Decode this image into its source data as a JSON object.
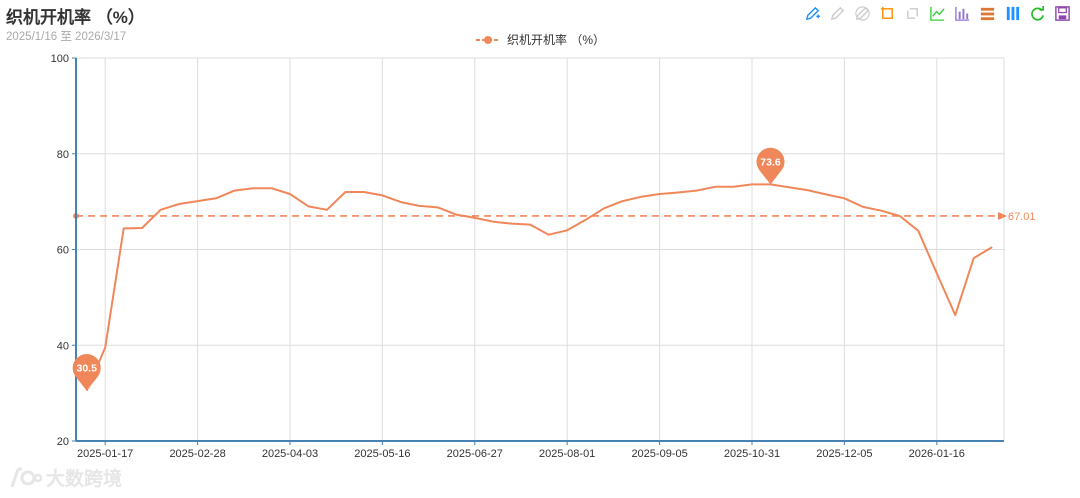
{
  "header": {
    "title": "织机开机率 （%）",
    "subtitle": "2025/1/16 至 2026/3/17"
  },
  "toolbox": [
    {
      "name": "mark-pen-icon",
      "color": "#1e90ff"
    },
    {
      "name": "mark-undo-icon",
      "color": "#cccccc"
    },
    {
      "name": "mark-clear-icon",
      "color": "#cccccc"
    },
    {
      "name": "data-zoom-icon",
      "color": "#ff8c00"
    },
    {
      "name": "data-zoom-reset-icon",
      "color": "#cccccc"
    },
    {
      "name": "line-chart-icon",
      "color": "#32cd32"
    },
    {
      "name": "bar-chart-icon",
      "color": "#9370db"
    },
    {
      "name": "stack-icon",
      "color": "#dc7633"
    },
    {
      "name": "tiled-icon",
      "color": "#1e90ff"
    },
    {
      "name": "restore-icon",
      "color": "#22bb22"
    },
    {
      "name": "save-image-icon",
      "color": "#8e44ad"
    }
  ],
  "watermark": {
    "text": "大数跨境"
  },
  "chart_data": {
    "type": "line",
    "title": "织机开机率 （%）",
    "subtitle": "2025/1/16 至 2026/3/17",
    "series": [
      {
        "name": "织机开机率 （%）",
        "color": "#f0875a",
        "values": [
          30.5,
          39.5,
          64.4,
          64.5,
          68.3,
          69.5,
          70.1,
          70.7,
          72.3,
          72.8,
          72.8,
          71.6,
          69.0,
          68.3,
          72.0,
          72.0,
          71.3,
          69.9,
          69.1,
          68.8,
          67.3,
          66.6,
          65.8,
          65.4,
          65.2,
          63.1,
          64.0,
          66.2,
          68.6,
          70.1,
          71.0,
          71.6,
          71.9,
          72.3,
          73.1,
          73.1,
          73.6,
          73.6,
          73.0,
          72.4,
          71.5,
          70.7,
          68.9,
          68.1,
          67.0,
          63.9,
          55.0,
          46.3,
          58.2,
          60.5
        ]
      }
    ],
    "x_tick_labels": [
      "2025-01-17",
      "2025-02-28",
      "2025-04-03",
      "2025-05-16",
      "2025-06-27",
      "2025-08-01",
      "2025-09-05",
      "2025-10-31",
      "2025-12-05",
      "2026-01-16"
    ],
    "x_tick_point_index": [
      1,
      6,
      11,
      16,
      21,
      26,
      31,
      36,
      41,
      46
    ],
    "y_ticks": [
      20,
      40,
      60,
      80,
      100
    ],
    "ylim": [
      20,
      100
    ],
    "mark_points": [
      {
        "type": "min",
        "label": "30.5",
        "value": 30.5,
        "index": 0
      },
      {
        "type": "max",
        "label": "73.6",
        "value": 73.6,
        "index": 37
      }
    ],
    "mark_line": {
      "type": "average",
      "value": 67.01,
      "label": "67.01"
    },
    "grid": true,
    "legend": "top-center",
    "axis_color": "#4682b4"
  }
}
